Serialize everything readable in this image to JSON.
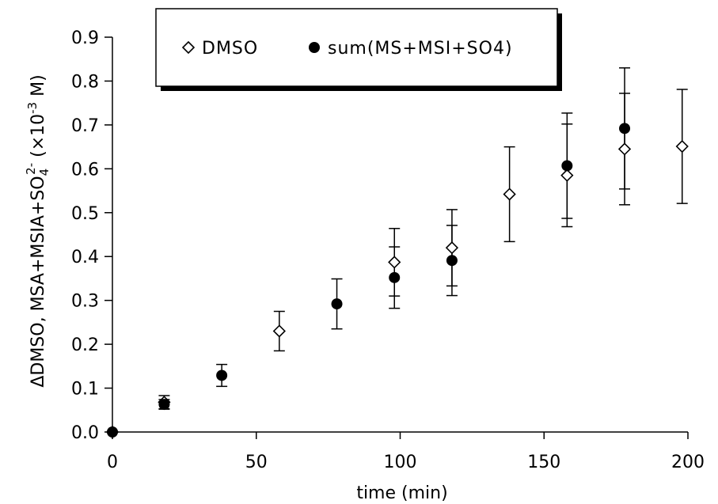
{
  "chart_data": {
    "type": "scatter",
    "title": "",
    "xlabel": "time (min)",
    "ylabel_parts": {
      "main": "ΔDMSO, MSA+MSIA+SO",
      "sub": "4",
      "sup": "2-",
      "unit_open": " (×10",
      "unit_exp": "-3",
      "unit_close": " M)"
    },
    "xlim": [
      0,
      200
    ],
    "ylim": [
      0,
      0.9
    ],
    "x_ticks": [
      0,
      50,
      100,
      150,
      200
    ],
    "x_tick_labels": [
      "0",
      "50",
      "100",
      "150",
      "200"
    ],
    "y_ticks": [
      0,
      0.1,
      0.2,
      0.3,
      0.4,
      0.5,
      0.6,
      0.7,
      0.8,
      0.9
    ],
    "y_tick_labels": [
      "0.0",
      "0.1",
      "0.2",
      "0.3",
      "0.4",
      "0.5",
      "0.6",
      "0.7",
      "0.8",
      "0.9"
    ],
    "grid": false,
    "legend_position": "top",
    "series": [
      {
        "name": "DMSO",
        "marker": "open-diamond",
        "color": "#000000",
        "points": [
          {
            "x": 0,
            "y": 0.0,
            "err": 0.0
          },
          {
            "x": 18,
            "y": 0.068,
            "err": 0.015
          },
          {
            "x": 58,
            "y": 0.23,
            "err": 0.045
          },
          {
            "x": 98,
            "y": 0.387,
            "err": 0.077
          },
          {
            "x": 118,
            "y": 0.42,
            "err": 0.087
          },
          {
            "x": 138,
            "y": 0.542,
            "err": 0.108
          },
          {
            "x": 158,
            "y": 0.585,
            "err": 0.117
          },
          {
            "x": 178,
            "y": 0.645,
            "err": 0.127
          },
          {
            "x": 198,
            "y": 0.651,
            "err": 0.13
          }
        ]
      },
      {
        "name": "sum(MS+MSI+SO4)",
        "marker": "filled-circle",
        "color": "#000000",
        "points": [
          {
            "x": 0,
            "y": 0.0,
            "err": 0.0
          },
          {
            "x": 18,
            "y": 0.063,
            "err": 0.011
          },
          {
            "x": 38,
            "y": 0.129,
            "err": 0.025
          },
          {
            "x": 78,
            "y": 0.292,
            "err": 0.057
          },
          {
            "x": 98,
            "y": 0.352,
            "err": 0.07
          },
          {
            "x": 118,
            "y": 0.391,
            "err": 0.08
          },
          {
            "x": 158,
            "y": 0.607,
            "err": 0.12
          },
          {
            "x": 178,
            "y": 0.692,
            "err": 0.138
          }
        ]
      }
    ]
  }
}
